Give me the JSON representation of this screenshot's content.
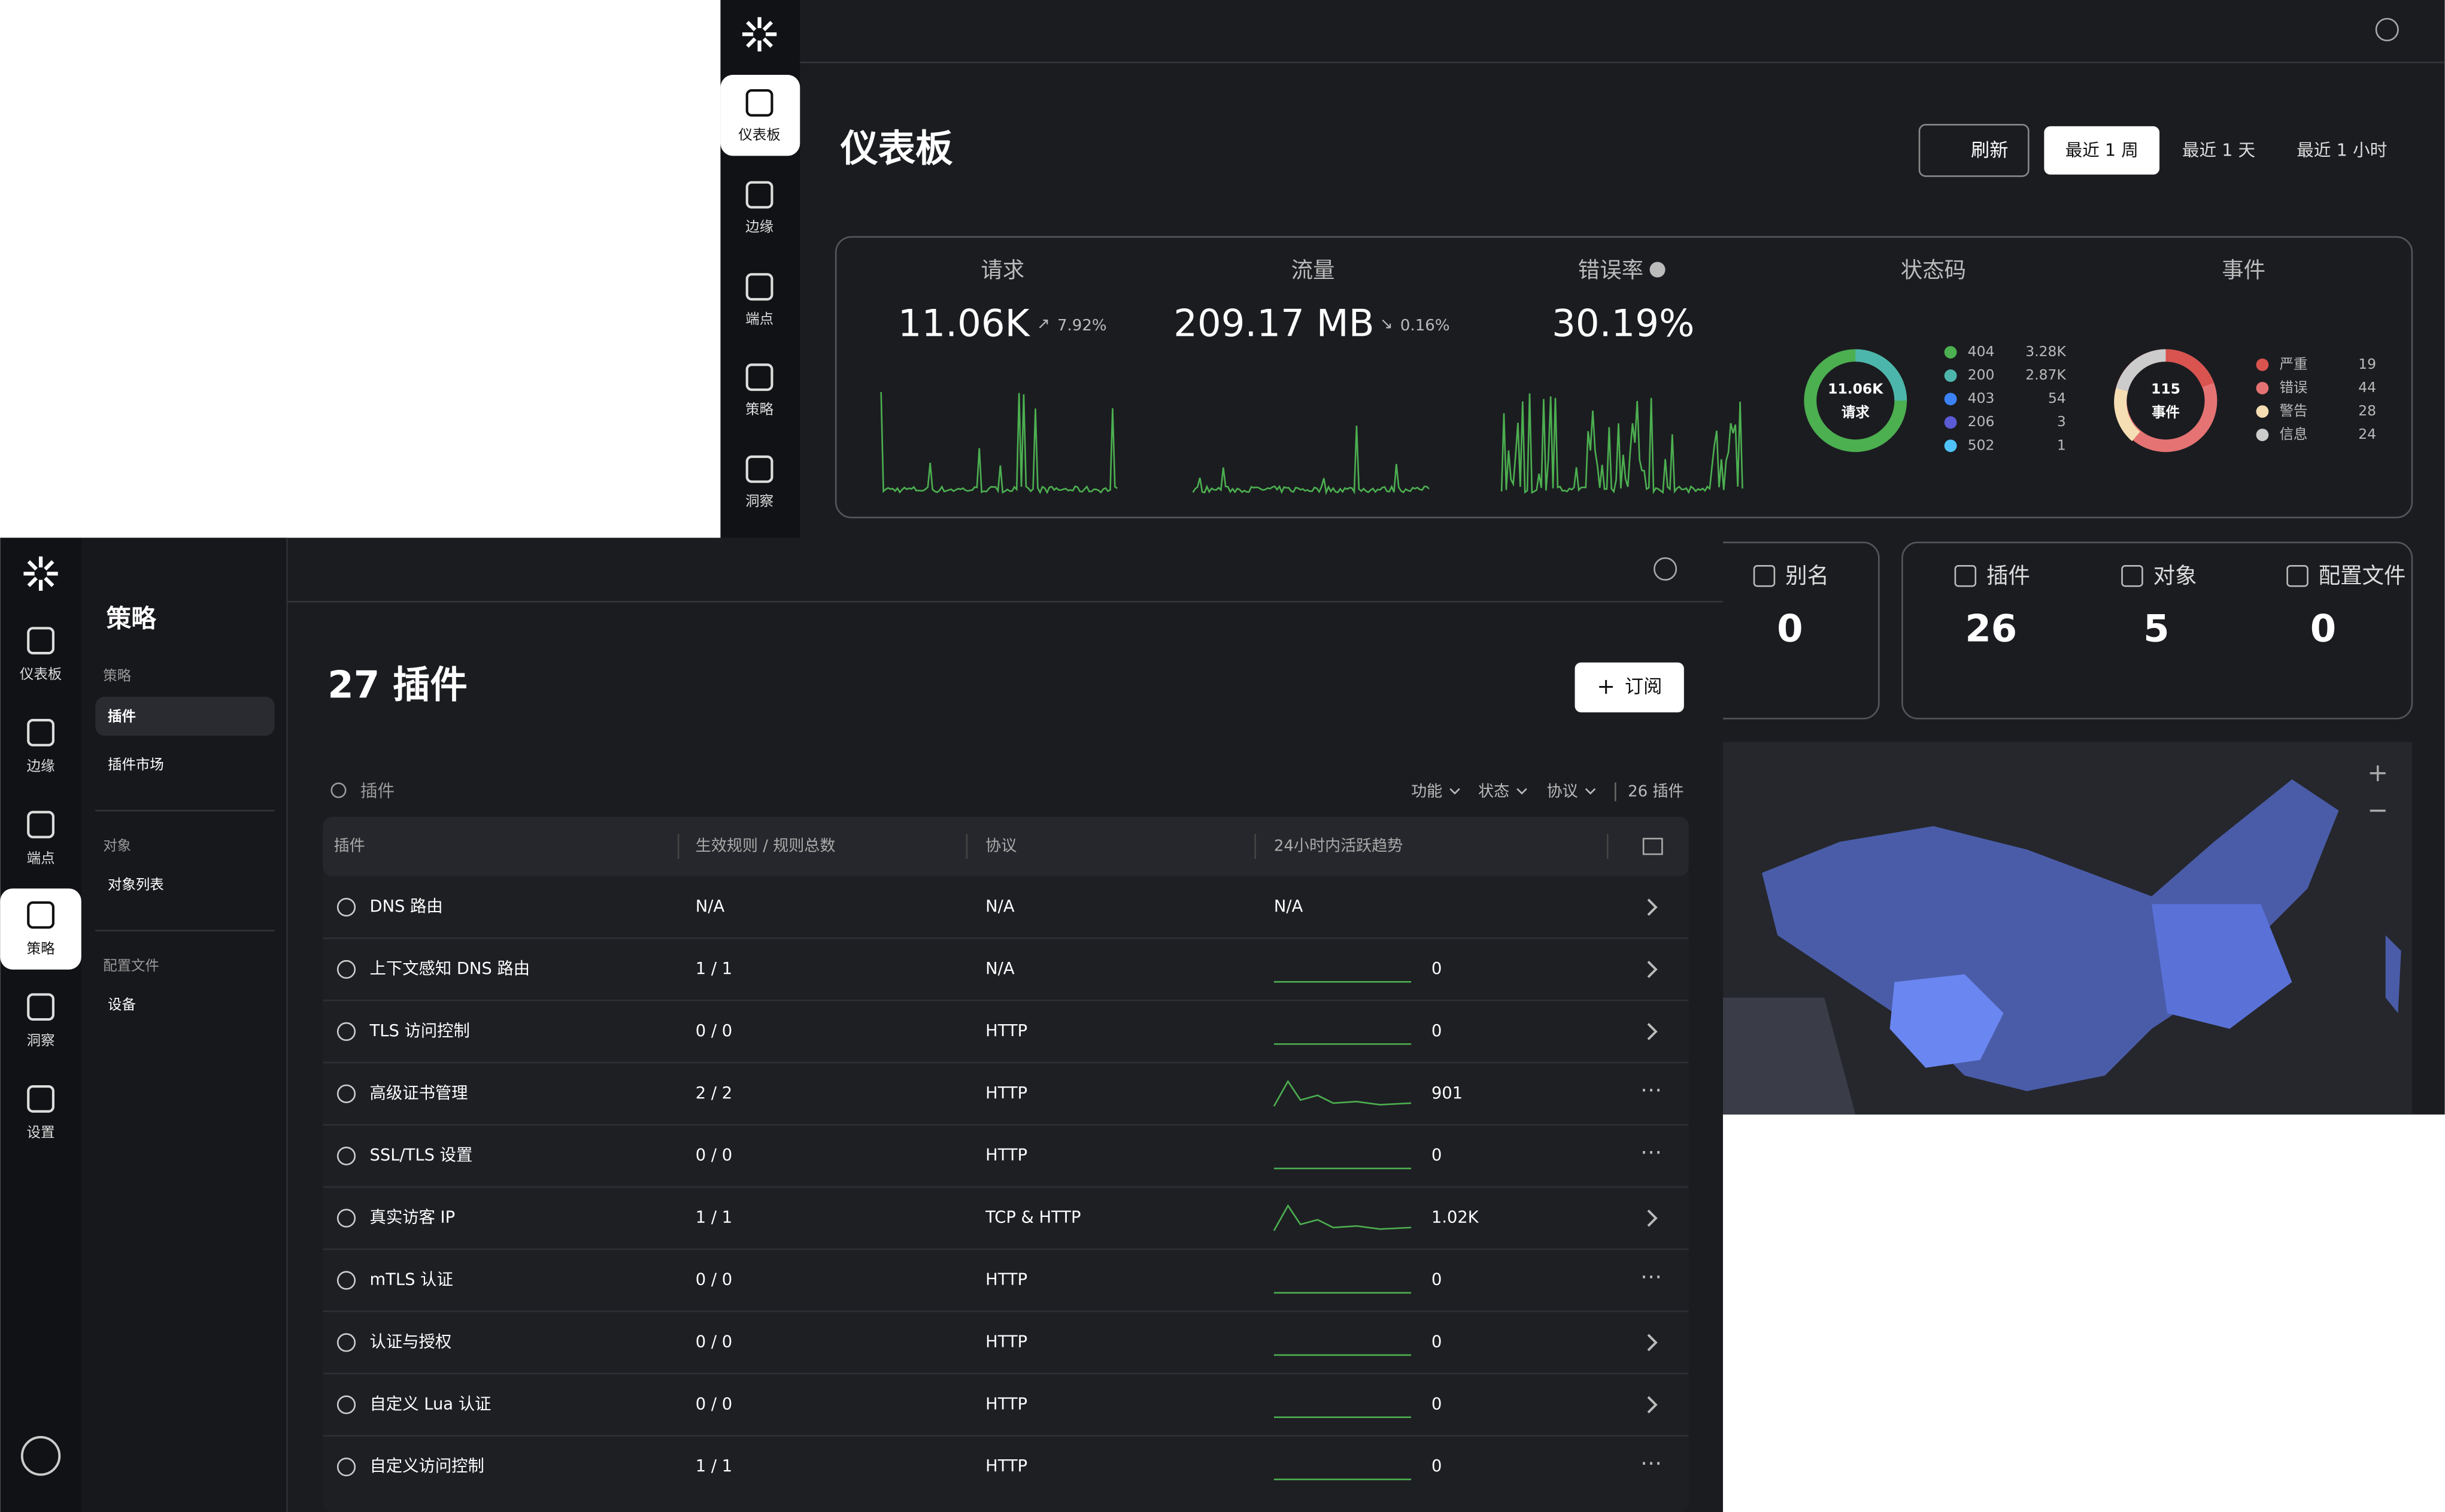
{
  "dashboard": {
    "nav": [
      "仪表板",
      "边缘",
      "端点",
      "策略",
      "洞察"
    ],
    "title": "仪表板",
    "buttons": [
      "刷新",
      "最近 1 周",
      "最近 1 天",
      "最近 1 小时"
    ],
    "stats": [
      {
        "label": "请求",
        "value": "11.06K",
        "change": "7.92%"
      },
      {
        "label": "流量",
        "value": "209.17 MB",
        "change": "0.16%"
      },
      {
        "label": "错误率",
        "value": "30.19%"
      }
    ],
    "status_codes": {
      "label": "状态码",
      "center_value": "11.06K",
      "center_label": "请求",
      "items": [
        {
          "code": "404",
          "count": "3.28K"
        },
        {
          "code": "200",
          "count": "2.87K"
        },
        {
          "code": "403",
          "count": "54"
        },
        {
          "code": "206",
          "count": "3"
        },
        {
          "code": "502",
          "count": "1"
        }
      ]
    },
    "events": {
      "label": "事件",
      "center_value": "115",
      "center_label": "事件",
      "items": [
        {
          "name": "严重",
          "count": "19"
        },
        {
          "name": "错误",
          "count": "44"
        },
        {
          "name": "警告",
          "count": "28"
        },
        {
          "name": "信息",
          "count": "24"
        }
      ]
    },
    "cards": [
      {
        "label": "别名",
        "value": "0"
      },
      {
        "label": "插件",
        "value": "26"
      },
      {
        "label": "对象",
        "value": "5"
      },
      {
        "label": "配置文件",
        "value": "0"
      }
    ]
  },
  "policy": {
    "nav": [
      "仪表板",
      "边缘",
      "端点",
      "策略",
      "洞察",
      "设置"
    ],
    "heading": "策略",
    "sections": [
      {
        "title": "策略",
        "items": [
          "插件",
          "插件市场"
        ]
      },
      {
        "title": "对象",
        "items": [
          "对象列表"
        ]
      },
      {
        "title": "配置文件",
        "items": [
          "设备"
        ]
      }
    ],
    "title": "27 插件",
    "subscribe": "订阅",
    "search_placeholder": "插件",
    "filters": [
      "功能",
      "状态",
      "协议"
    ],
    "count": "26 插件",
    "table": {
      "headers": [
        "插件",
        "生效规则 / 规则总数",
        "协议",
        "24小时内活跃趋势"
      ],
      "rows": [
        [
          "DNS 路由",
          "N/A",
          "N/A",
          "N/A"
        ],
        [
          "上下文感知 DNS 路由",
          "1 / 1",
          "N/A",
          "0"
        ],
        [
          "TLS 访问控制",
          "0 / 0",
          "HTTP",
          "0"
        ],
        [
          "高级证书管理",
          "2 / 2",
          "HTTP",
          "901"
        ],
        [
          "SSL/TLS 设置",
          "0 / 0",
          "HTTP",
          "0"
        ],
        [
          "真实访客 IP",
          "1 / 1",
          "TCP & HTTP",
          "1.02K"
        ],
        [
          "mTLS 认证",
          "0 / 0",
          "HTTP",
          "0"
        ],
        [
          "认证与授权",
          "0 / 0",
          "HTTP",
          "0"
        ],
        [
          "自定义 Lua 认证",
          "0 / 0",
          "HTTP",
          "0"
        ],
        [
          "自定义访问控制",
          "1 / 1",
          "HTTP",
          "0"
        ]
      ]
    }
  }
}
